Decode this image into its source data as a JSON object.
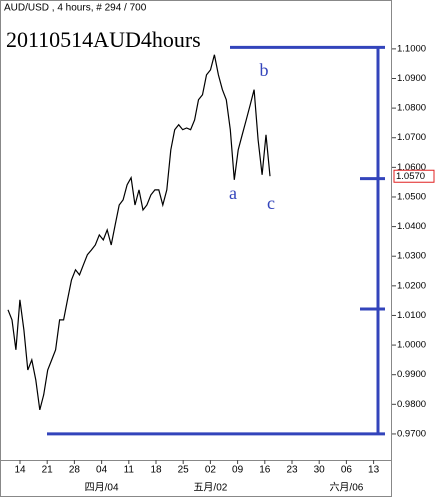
{
  "chart_data": {
    "type": "line",
    "header": "AUD/USD , 4 hours, # 294 / 700",
    "title": "20110514AUD4hours",
    "series": [
      {
        "name": "AUD/USD",
        "color": "#000000",
        "values": [
          1.0119,
          1.0085,
          0.9984,
          1.0153,
          1.0051,
          0.9916,
          0.995,
          0.9882,
          0.9781,
          0.9832,
          0.9916,
          0.995,
          0.9984,
          1.0085,
          1.0085,
          1.0153,
          1.022,
          1.0254,
          1.0237,
          1.0271,
          1.0305,
          1.0321,
          1.0338,
          1.0372,
          1.0355,
          1.0389,
          1.0338,
          1.0406,
          1.0473,
          1.049,
          1.0541,
          1.0565,
          1.0473,
          1.0524,
          1.0456,
          1.0473,
          1.0507,
          1.0524,
          1.0524,
          1.0473,
          1.0524,
          1.0659,
          1.0727,
          1.0744,
          1.0727,
          1.0733,
          1.0727,
          1.076,
          1.0828,
          1.0845,
          1.0912,
          1.0929,
          1.098,
          1.0912,
          1.0862,
          1.0828,
          1.0727,
          1.0558,
          1.0659,
          1.071,
          1.076,
          1.0811,
          1.0862,
          1.0693,
          1.0575,
          1.071,
          1.057
        ]
      }
    ],
    "x_labels": [
      "14",
      "21",
      "28",
      "04",
      "11",
      "18",
      "25",
      "02",
      "09",
      "16",
      "23",
      "30",
      "06",
      "13"
    ],
    "month_labels": [
      "四月/04",
      "五月/02",
      "六月/06"
    ],
    "ylim": [
      0.9612,
      1.1165
    ],
    "yticks": [
      {
        "value": 0.97,
        "label": "0.9700"
      },
      {
        "value": 0.98,
        "label": "0.9800"
      },
      {
        "value": 0.99,
        "label": "0.9900"
      },
      {
        "value": 1.0,
        "label": "1.0000"
      },
      {
        "value": 1.01,
        "label": "1.0100"
      },
      {
        "value": 1.02,
        "label": "1.0200"
      },
      {
        "value": 1.03,
        "label": "1.0300"
      },
      {
        "value": 1.04,
        "label": "1.0400"
      },
      {
        "value": 1.05,
        "label": "1.0500"
      },
      {
        "value": 1.06,
        "label": "1.0600"
      },
      {
        "value": 1.07,
        "label": "1.0700"
      },
      {
        "value": 1.08,
        "label": "1.0800"
      },
      {
        "value": 1.09,
        "label": "1.0900"
      },
      {
        "value": 1.1,
        "label": "1.1000"
      }
    ],
    "last_price": {
      "value": 1.057,
      "label": "1.0570"
    },
    "levels": [
      1.1005,
      1.0562,
      1.0122,
      0.97
    ],
    "level_color": "#3344bb",
    "annotations": [
      "a",
      "b",
      "c"
    ]
  }
}
